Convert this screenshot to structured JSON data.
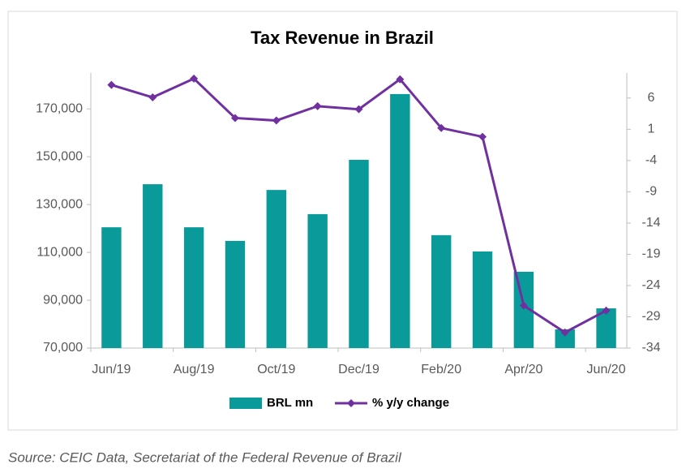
{
  "chart_data": {
    "type": "bar-line",
    "title": "Tax Revenue in Brazil",
    "source": "Source: CEIC Data, Secretariat of the Federal Revenue of Brazil",
    "categories": [
      "Jun/19",
      null,
      "Aug/19",
      null,
      "Oct/19",
      null,
      "Dec/19",
      null,
      "Feb/20",
      null,
      "Apr/20",
      null,
      "Jun/20"
    ],
    "series": [
      {
        "name": "BRL mn",
        "type": "bar",
        "color": "#0a9a9a",
        "values": [
          120500,
          138500,
          120500,
          114800,
          136100,
          126000,
          148700,
          176200,
          117200,
          110400,
          101900,
          77800,
          86600
        ]
      },
      {
        "name": "% y/y change",
        "type": "line",
        "axis": "y2",
        "color": "#7030a0",
        "values": [
          8.1,
          6.1,
          9.1,
          2.8,
          2.4,
          4.7,
          4.2,
          9.0,
          1.2,
          -0.2,
          -27.2,
          -31.5,
          -28.0
        ]
      }
    ],
    "ylim": [
      70000,
      185000
    ],
    "yticks": [
      {
        "value": 70000,
        "label": "70,000"
      },
      {
        "value": 90000,
        "label": "90,000"
      },
      {
        "value": 110000,
        "label": "110,000"
      },
      {
        "value": 130000,
        "label": "130,000"
      },
      {
        "value": 150000,
        "label": "150,000"
      },
      {
        "value": 170000,
        "label": "170,000"
      }
    ],
    "y2lim": [
      -34,
      10
    ],
    "y2ticks": [
      -34,
      -29,
      -24,
      -19,
      -14,
      -9,
      -4,
      1,
      6
    ],
    "legend": "bottom"
  }
}
